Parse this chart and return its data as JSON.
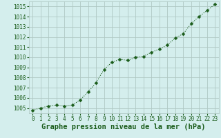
{
  "x": [
    0,
    1,
    2,
    3,
    4,
    5,
    6,
    7,
    8,
    9,
    10,
    11,
    12,
    13,
    14,
    15,
    16,
    17,
    18,
    19,
    20,
    21,
    22,
    23
  ],
  "y": [
    1004.8,
    1005.0,
    1005.2,
    1005.3,
    1005.2,
    1005.3,
    1005.8,
    1006.6,
    1007.5,
    1008.8,
    1009.5,
    1009.8,
    1009.7,
    1010.0,
    1010.1,
    1010.5,
    1010.8,
    1011.2,
    1011.9,
    1012.3,
    1013.3,
    1014.0,
    1014.6,
    1015.2
  ],
  "xlim": [
    -0.5,
    23.5
  ],
  "ylim": [
    1004.5,
    1015.5
  ],
  "yticks": [
    1005,
    1006,
    1007,
    1008,
    1009,
    1010,
    1011,
    1012,
    1013,
    1014,
    1015
  ],
  "xticks": [
    0,
    1,
    2,
    3,
    4,
    5,
    6,
    7,
    8,
    9,
    10,
    11,
    12,
    13,
    14,
    15,
    16,
    17,
    18,
    19,
    20,
    21,
    22,
    23
  ],
  "xlabel": "Graphe pression niveau de la mer (hPa)",
  "line_color": "#1a5c1a",
  "marker": "D",
  "marker_size": 2.5,
  "bg_color": "#d4eeed",
  "grid_color": "#b0c8c4",
  "tick_color": "#1a5c1a",
  "label_color": "#1a5c1a",
  "tick_fontsize": 5.5,
  "xlabel_fontsize": 7.5
}
